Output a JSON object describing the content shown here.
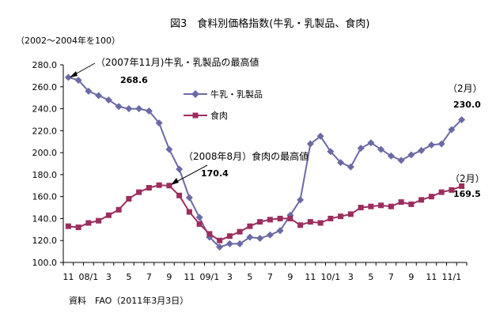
{
  "chart_data": {
    "type": "line",
    "title": "図3　食料別価格指数(牛乳・乳製品、食肉)",
    "unit_note": "（2002～2004年を100）",
    "source": "資料　FAO（2011年3月3日）",
    "ylim": [
      100,
      280
    ],
    "yticks": [
      "100.0",
      "120.0",
      "140.0",
      "160.0",
      "180.0",
      "200.0",
      "220.0",
      "240.0",
      "260.0",
      "280.0"
    ],
    "grid": false,
    "legend_position": "top-center",
    "x_tick_labels": [
      "11",
      "08/1",
      "3",
      "5",
      "7",
      "9",
      "11",
      "09/1",
      "3",
      "5",
      "7",
      "9",
      "11",
      "10/1",
      "3",
      "5",
      "7",
      "9",
      "11",
      "11/1"
    ],
    "series": [
      {
        "name": "牛乳・乳製品",
        "color": "#6b6aa6",
        "marker": "diamond",
        "values": [
          268.6,
          266,
          256,
          252,
          248,
          242,
          240,
          240,
          238,
          227,
          203,
          185,
          159,
          141,
          123,
          114,
          117,
          117,
          123,
          122,
          125,
          129,
          143,
          157,
          208,
          215,
          201,
          191,
          187,
          204,
          209,
          203,
          197,
          193,
          198,
          202,
          207,
          208,
          221,
          230.0
        ]
      },
      {
        "name": "食肉",
        "color": "#9b2e5e",
        "marker": "square",
        "values": [
          133,
          132,
          136,
          138,
          143,
          148,
          158,
          164,
          168,
          170.4,
          170,
          161,
          146,
          135,
          126,
          120,
          124,
          128,
          133,
          137,
          139,
          140,
          140,
          134,
          137,
          136,
          140,
          142,
          144,
          150,
          151,
          152,
          151,
          155,
          153,
          157,
          160,
          164,
          166,
          169.5
        ]
      }
    ],
    "annotations": {
      "dairy_peak": "（2007年11月)牛乳・乳製品の最高値",
      "dairy_peak_value": "268.6",
      "meat_peak": "（2008年8月）食肉の最高値",
      "meat_peak_value": "170.4",
      "dairy_end_month": "（2月）",
      "dairy_end_value": "230.0",
      "meat_end_month": "（2月）",
      "meat_end_value": "169.5"
    }
  }
}
